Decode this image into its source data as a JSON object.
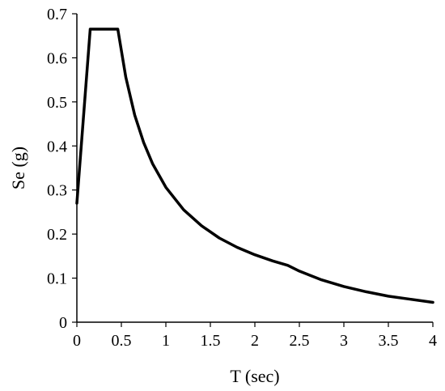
{
  "chart_data": {
    "type": "line",
    "title": "",
    "xlabel": "T (sec)",
    "ylabel": "Se (g)",
    "xlim": [
      0,
      4
    ],
    "ylim": [
      0,
      0.7
    ],
    "xticks": [
      0,
      0.5,
      1,
      1.5,
      2,
      2.5,
      3,
      3.5,
      4
    ],
    "xtick_labels": [
      "0",
      "0.5",
      "1",
      "1.5",
      "2",
      "2.5",
      "3",
      "3.5",
      "4"
    ],
    "yticks": [
      0,
      0.1,
      0.2,
      0.3,
      0.4,
      0.5,
      0.6,
      0.7
    ],
    "ytick_labels": [
      "0",
      "0.1",
      "0.2",
      "0.3",
      "0.4",
      "0.5",
      "0.6",
      "0.7"
    ],
    "grid": false,
    "legend": "none",
    "series": [
      {
        "color": "#000000",
        "x": [
          0,
          0.15,
          0.46,
          0.55,
          0.65,
          0.75,
          0.85,
          1.0,
          1.2,
          1.4,
          1.6,
          1.8,
          2.0,
          2.2,
          2.37,
          2.5,
          2.75,
          3.0,
          3.25,
          3.5,
          3.75,
          4.0
        ],
        "y": [
          0.27,
          0.665,
          0.665,
          0.556,
          0.47,
          0.408,
          0.36,
          0.306,
          0.255,
          0.219,
          0.191,
          0.17,
          0.153,
          0.139,
          0.129,
          0.116,
          0.096,
          0.081,
          0.069,
          0.059,
          0.052,
          0.045
        ]
      }
    ]
  }
}
